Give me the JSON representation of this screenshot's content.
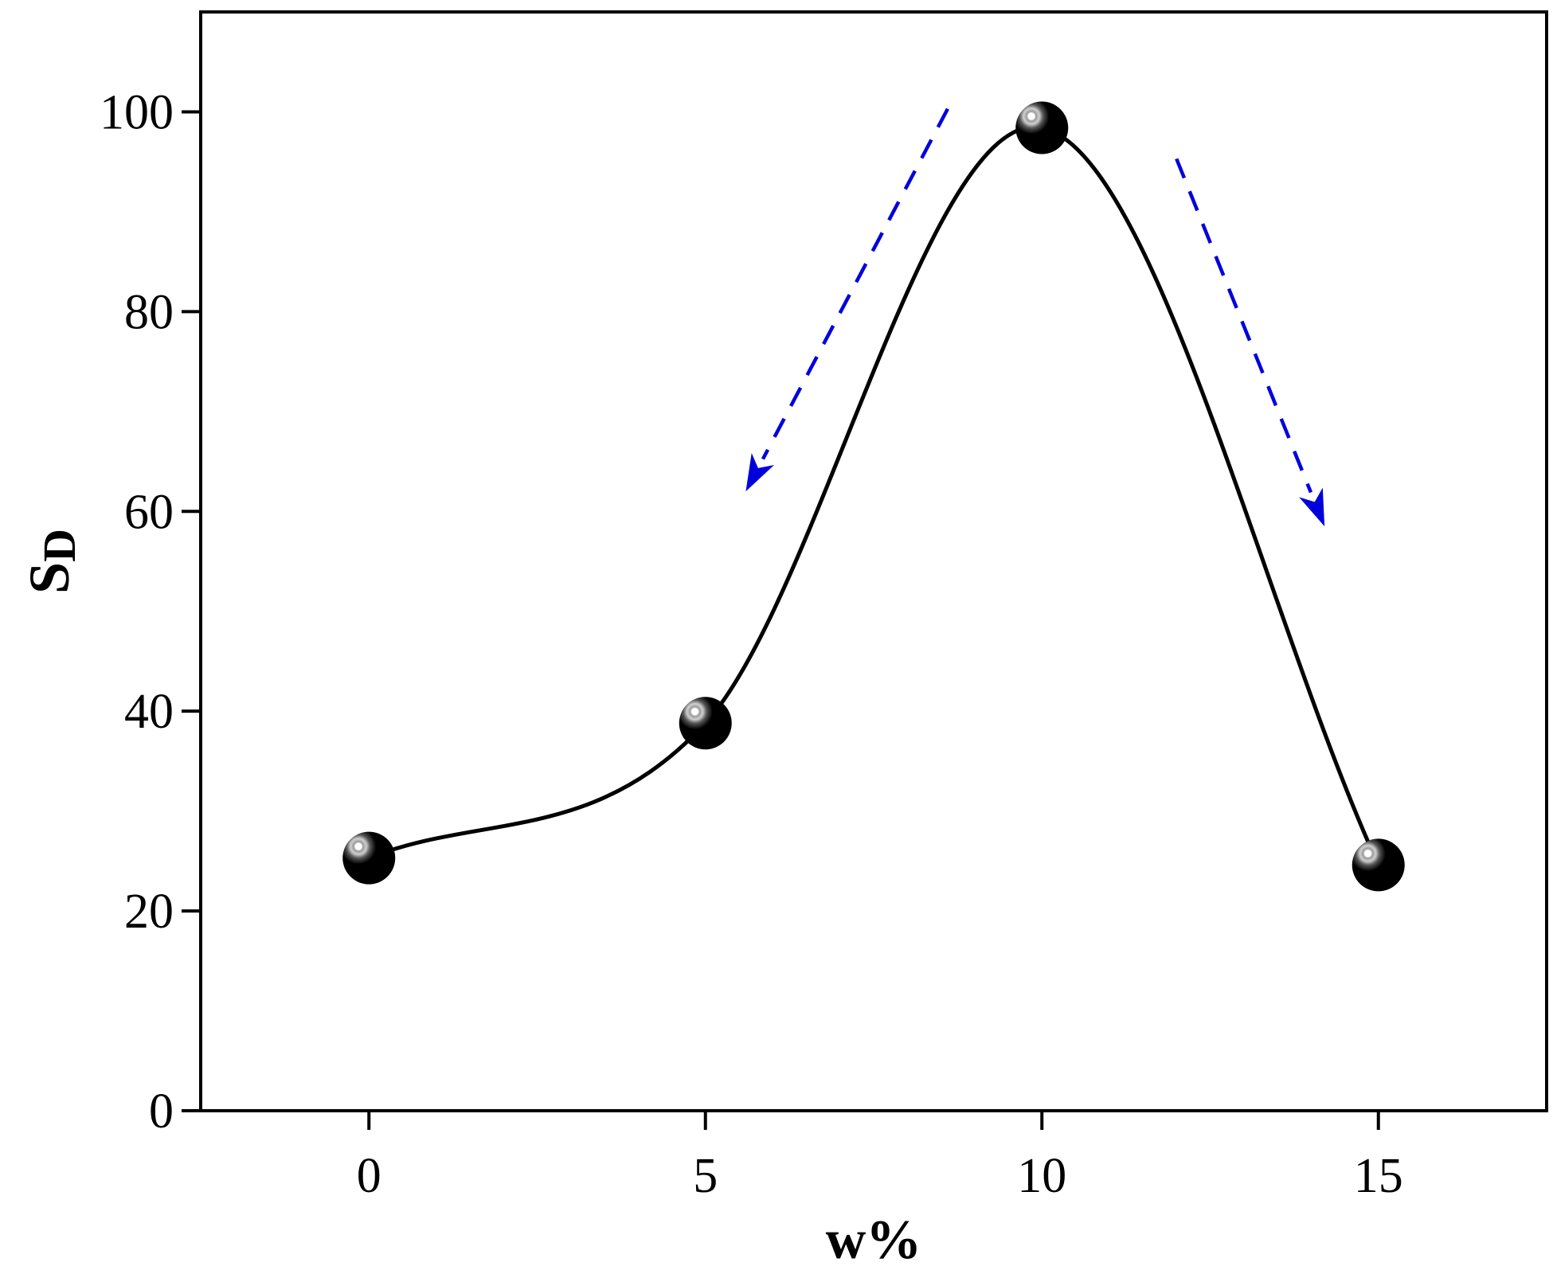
{
  "chart_data": {
    "type": "scatter",
    "xlabel": "w%",
    "ylabel": {
      "main": "S",
      "sub": "D"
    },
    "xlim": [
      -2.5,
      17.5
    ],
    "ylim": [
      0,
      110
    ],
    "xticks": [
      0,
      5,
      10,
      15
    ],
    "yticks": [
      0,
      20,
      40,
      60,
      80,
      100
    ],
    "grid": false,
    "series": [
      {
        "points": [
          {
            "x": 0,
            "y": 25.3
          },
          {
            "x": 5,
            "y": 38.8
          },
          {
            "x": 10,
            "y": 98.4
          },
          {
            "x": 15,
            "y": 24.6
          }
        ],
        "marker_color": "#000000",
        "line_color": "#000000",
        "smooth": true
      }
    ],
    "annotations": [
      {
        "type": "dashed-arrow",
        "from": {
          "x": 8.6,
          "y": 100.3
        },
        "to": {
          "x": 5.6,
          "y": 62
        },
        "color": "#0000dd"
      },
      {
        "type": "dashed-arrow",
        "from": {
          "x": 12.0,
          "y": 95.3
        },
        "to": {
          "x": 14.2,
          "y": 58.5
        },
        "color": "#0000dd"
      }
    ]
  }
}
